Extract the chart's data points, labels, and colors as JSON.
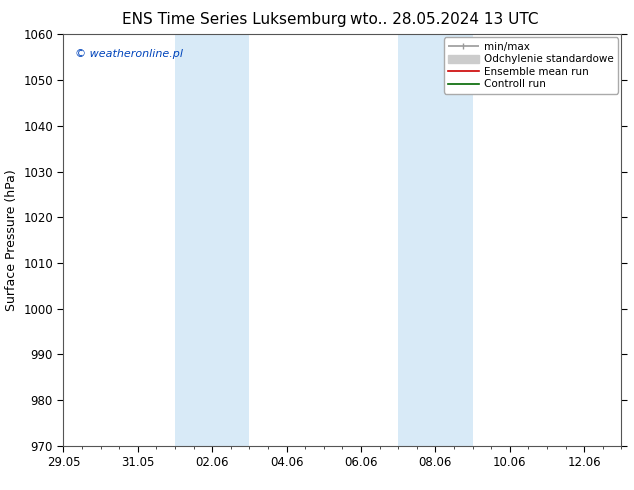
{
  "title_left": "ENS Time Series Luksemburg",
  "title_right": "wto.. 28.05.2024 13 UTC",
  "ylabel": "Surface Pressure (hPa)",
  "ylim": [
    970,
    1060
  ],
  "yticks": [
    970,
    980,
    990,
    1000,
    1010,
    1020,
    1030,
    1040,
    1050,
    1060
  ],
  "xlim_start_days": 0,
  "xlim_end_days": 15,
  "xtick_labels": [
    "29.05",
    "31.05",
    "02.06",
    "04.06",
    "06.06",
    "08.06",
    "10.06",
    "12.06"
  ],
  "xtick_positions": [
    0,
    2,
    4,
    6,
    8,
    10,
    12,
    14
  ],
  "shaded_bands": [
    {
      "xmin": 3.0,
      "xmax": 5.0
    },
    {
      "xmin": 9.0,
      "xmax": 11.0
    }
  ],
  "shaded_color": "#d8eaf7",
  "background_color": "#ffffff",
  "watermark": "© weatheronline.pl",
  "legend_entries": [
    {
      "label": "min/max",
      "color": "#999999",
      "lw": 1.2
    },
    {
      "label": "Odchylenie standardowe",
      "color": "#cccccc",
      "lw": 7
    },
    {
      "label": "Ensemble mean run",
      "color": "#cc0000",
      "lw": 1.2
    },
    {
      "label": "Controll run",
      "color": "#006600",
      "lw": 1.2
    }
  ],
  "spine_color": "#555555",
  "tick_label_fontsize": 8.5,
  "ylabel_fontsize": 9,
  "title_fontsize": 11,
  "watermark_fontsize": 8,
  "legend_fontsize": 7.5
}
